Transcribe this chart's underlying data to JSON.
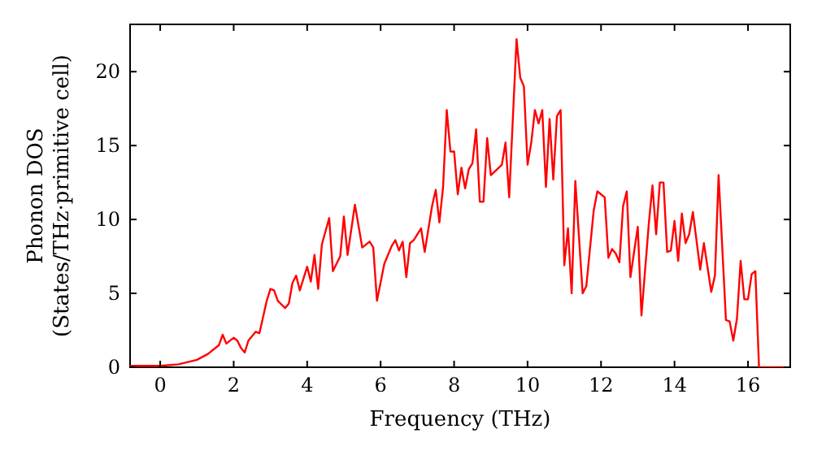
{
  "chart_data": {
    "type": "line",
    "xlabel": "Frequency (THz)",
    "ylabel": "Phonon DOS\n(States/THz·primitive cell)",
    "xlim": [
      -0.82,
      17.15
    ],
    "ylim": [
      0,
      23.2
    ],
    "xticks": [
      0,
      2,
      4,
      6,
      8,
      10,
      12,
      14,
      16
    ],
    "yticks": [
      0,
      5,
      10,
      15,
      20
    ],
    "grid": false,
    "line_style": "solid",
    "marker": "none",
    "series": [
      {
        "color": "#ff0000",
        "x": [
          -0.82,
          0,
          0.5,
          1.0,
          1.3,
          1.6,
          1.7,
          1.8,
          2.0,
          2.1,
          2.2,
          2.3,
          2.4,
          2.6,
          2.7,
          2.9,
          3.0,
          3.1,
          3.2,
          3.4,
          3.5,
          3.6,
          3.7,
          3.8,
          4.0,
          4.1,
          4.2,
          4.3,
          4.4,
          4.6,
          4.7,
          4.9,
          5.0,
          5.1,
          5.3,
          5.5,
          5.7,
          5.8,
          5.9,
          6.1,
          6.3,
          6.4,
          6.5,
          6.6,
          6.7,
          6.8,
          6.9,
          7.1,
          7.2,
          7.4,
          7.5,
          7.6,
          7.7,
          7.8,
          7.9,
          8.0,
          8.1,
          8.2,
          8.3,
          8.4,
          8.5,
          8.6,
          8.7,
          8.8,
          8.9,
          9.0,
          9.3,
          9.4,
          9.5,
          9.7,
          9.8,
          9.9,
          10.0,
          10.1,
          10.2,
          10.3,
          10.4,
          10.5,
          10.6,
          10.7,
          10.8,
          10.9,
          11.0,
          11.1,
          11.2,
          11.3,
          11.5,
          11.6,
          11.8,
          11.9,
          12.1,
          12.2,
          12.3,
          12.4,
          12.5,
          12.6,
          12.7,
          12.8,
          13.0,
          13.1,
          13.3,
          13.4,
          13.5,
          13.6,
          13.7,
          13.8,
          13.9,
          14.0,
          14.1,
          14.2,
          14.3,
          14.4,
          14.5,
          14.7,
          14.8,
          15.0,
          15.1,
          15.2,
          15.4,
          15.5,
          15.6,
          15.7,
          15.8,
          15.9,
          16.0,
          16.1,
          16.2,
          16.3,
          16.5,
          17.0
        ],
        "values": [
          0.1,
          0.1,
          0.2,
          0.5,
          0.9,
          1.5,
          2.2,
          1.6,
          2.0,
          1.8,
          1.3,
          1.0,
          1.8,
          2.4,
          2.3,
          4.5,
          5.3,
          5.2,
          4.5,
          4.0,
          4.3,
          5.7,
          6.2,
          5.2,
          6.8,
          5.8,
          7.6,
          5.3,
          8.3,
          10.1,
          6.5,
          7.5,
          10.2,
          7.6,
          11.0,
          8.1,
          8.5,
          8.1,
          4.5,
          7.0,
          8.2,
          8.6,
          7.9,
          8.5,
          6.1,
          8.4,
          8.6,
          9.4,
          7.8,
          10.9,
          12.0,
          9.8,
          12.2,
          17.4,
          14.6,
          14.6,
          11.7,
          13.5,
          12.1,
          13.4,
          13.8,
          16.1,
          11.2,
          11.2,
          15.5,
          13.0,
          13.7,
          15.2,
          11.5,
          22.2,
          19.6,
          19.0,
          13.7,
          15.2,
          17.4,
          16.5,
          17.4,
          12.2,
          16.8,
          12.7,
          17.0,
          17.4,
          6.9,
          9.4,
          5.0,
          12.6,
          5.0,
          5.5,
          10.6,
          11.9,
          11.5,
          7.4,
          8.0,
          7.7,
          7.1,
          10.9,
          11.9,
          6.1,
          9.5,
          3.5,
          9.7,
          12.3,
          9.0,
          12.5,
          12.5,
          7.8,
          7.9,
          9.9,
          7.2,
          10.4,
          8.4,
          9.0,
          10.5,
          6.6,
          8.4,
          5.1,
          6.2,
          13.0,
          3.2,
          3.1,
          1.8,
          3.3,
          7.2,
          4.6,
          4.6,
          6.3,
          6.5,
          0,
          0,
          0
        ]
      }
    ]
  }
}
